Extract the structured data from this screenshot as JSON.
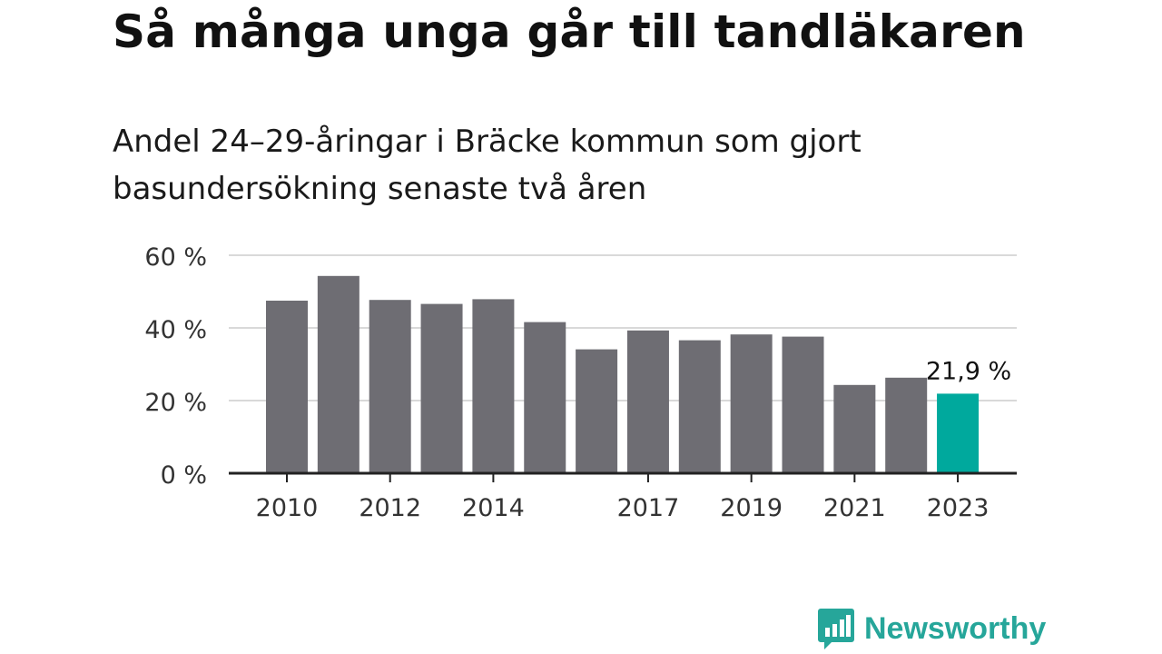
{
  "title": "Så många unga går till tandläkaren",
  "subtitle": "Andel 24–29-åringar i Bräcke kommun som gjort basundersökning senaste två åren",
  "brand": "Newsworthy",
  "colors": {
    "bar": "#6e6d73",
    "highlight": "#00a99d",
    "grid": "#d9d9d9",
    "axis": "#222222",
    "brand": "#26a69a"
  },
  "chart_data": {
    "type": "bar",
    "categories": [
      "2010",
      "2011",
      "2012",
      "2013",
      "2014",
      "2015",
      "2016",
      "2017",
      "2018",
      "2019",
      "2020",
      "2021",
      "2022",
      "2023"
    ],
    "values": [
      47.5,
      54.3,
      47.7,
      46.6,
      47.9,
      41.6,
      34.1,
      39.3,
      36.6,
      38.2,
      37.6,
      24.3,
      26.3,
      21.9
    ],
    "highlight_category": "2023",
    "x_tick_labels": [
      "2010",
      "",
      "2012",
      "",
      "2014",
      "",
      "",
      "2017",
      "",
      "2019",
      "",
      "2021",
      "",
      "2023"
    ],
    "y_ticks": [
      0,
      20,
      40,
      60
    ],
    "y_tick_labels": [
      "0 %",
      "20 %",
      "40 %",
      "60 %"
    ],
    "ylim": [
      0,
      60
    ],
    "grid": true,
    "annotation": {
      "category": "2023",
      "text": "21,9 %"
    }
  }
}
